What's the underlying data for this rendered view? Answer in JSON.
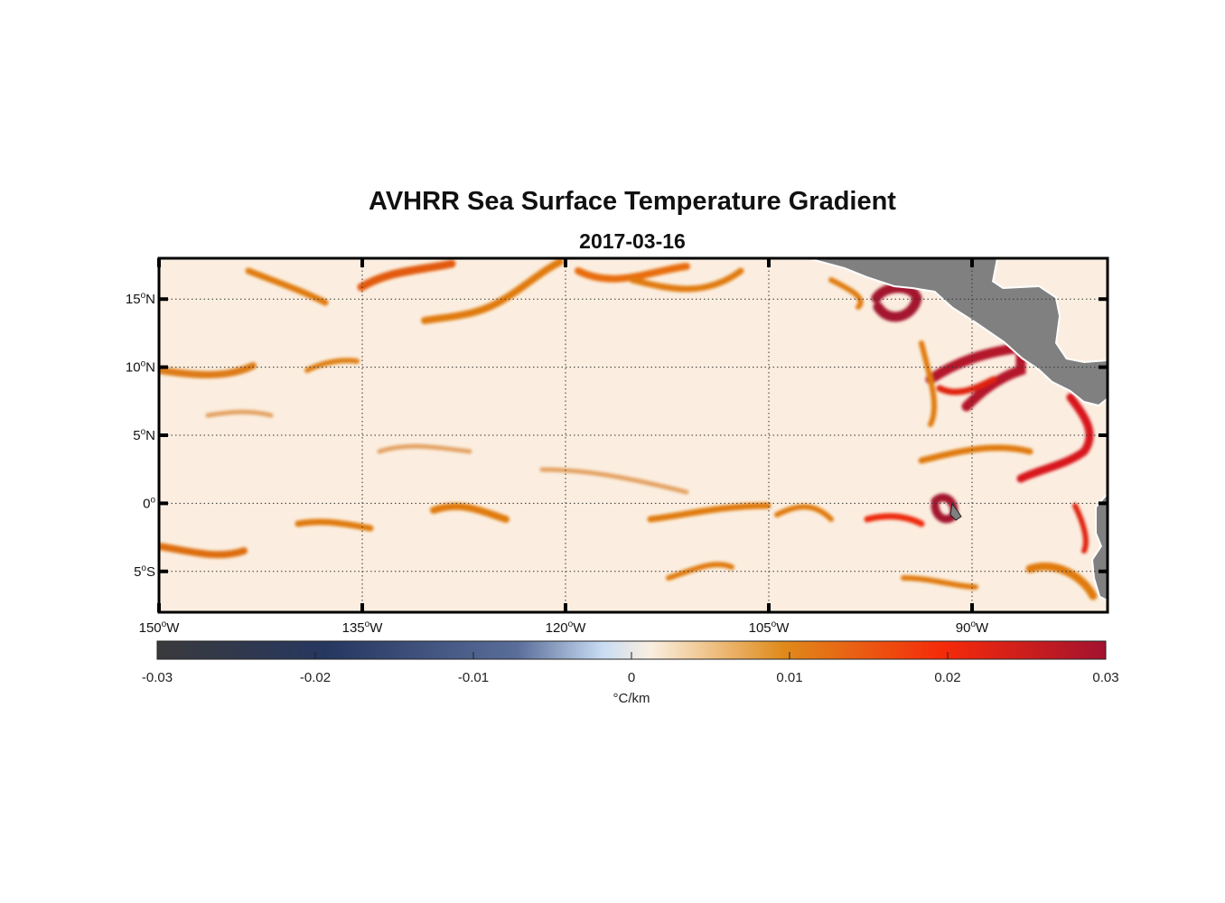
{
  "title": "AVHRR Sea Surface Temperature Gradient",
  "subtitle": "2017-03-16",
  "chart_data": {
    "type": "heatmap",
    "title": "AVHRR Sea Surface Temperature Gradient",
    "subtitle": "2017-03-16",
    "projection": "equirectangular",
    "lon_range": [
      -150,
      -80
    ],
    "lat_range": [
      -8,
      18
    ],
    "grid": true,
    "x_ticks": [
      {
        "value": -150,
        "num": "150",
        "hemi": "W"
      },
      {
        "value": -135,
        "num": "135",
        "hemi": "W"
      },
      {
        "value": -120,
        "num": "120",
        "hemi": "W"
      },
      {
        "value": -105,
        "num": "105",
        "hemi": "W"
      },
      {
        "value": -90,
        "num": "90",
        "hemi": "W"
      }
    ],
    "y_ticks": [
      {
        "value": 15,
        "num": "15",
        "hemi": "N"
      },
      {
        "value": 10,
        "num": "10",
        "hemi": "N"
      },
      {
        "value": 5,
        "num": "5",
        "hemi": "N"
      },
      {
        "value": 0,
        "num": "0",
        "hemi": ""
      },
      {
        "value": -5,
        "num": "5",
        "hemi": "S"
      }
    ],
    "colorbar": {
      "label": "°C/km",
      "range": [
        -0.03,
        0.03
      ],
      "ticks": [
        "-0.03",
        "-0.02",
        "-0.01",
        "0",
        "0.01",
        "0.02",
        "0.03"
      ],
      "tick_values": [
        -0.03,
        -0.02,
        -0.01,
        0,
        0.01,
        0.02,
        0.03
      ],
      "colors": [
        "#3a3a3c",
        "#263760",
        "#5a6e9a",
        "#c9dcf3",
        "#faefe0",
        "#e08a1a",
        "#f52a0a",
        "#a3122f"
      ]
    },
    "colors": {
      "land": "#808080",
      "ocean_background": "#fbeee0"
    }
  }
}
